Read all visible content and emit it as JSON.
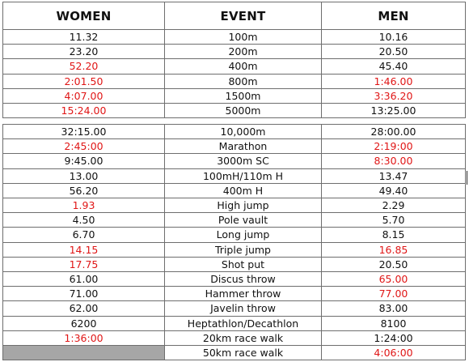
{
  "colors": {
    "highlight": "#e01616",
    "border": "#6e6e6e",
    "empty_cell": "#a6a6a6"
  },
  "header": {
    "women": "WOMEN",
    "event": "EVENT",
    "men": "MEN"
  },
  "table1": [
    {
      "women": "11.32",
      "event": "100m",
      "men": "10.16",
      "women_red": false,
      "men_red": false
    },
    {
      "women": "23.20",
      "event": "200m",
      "men": "20.50",
      "women_red": false,
      "men_red": false
    },
    {
      "women": "52.20",
      "event": "400m",
      "men": "45.40",
      "women_red": true,
      "men_red": false
    },
    {
      "women": "2:01.50",
      "event": "800m",
      "men": "1:46.00",
      "women_red": true,
      "men_red": true
    },
    {
      "women": "4:07.00",
      "event": "1500m",
      "men": "3:36.20",
      "women_red": true,
      "men_red": true
    },
    {
      "women": "15:24.00",
      "event": "5000m",
      "men": "13:25.00",
      "women_red": true,
      "men_red": false
    }
  ],
  "table2": [
    {
      "women": "32:15.00",
      "event": "10,000m",
      "men": "28:00.00",
      "women_red": false,
      "men_red": false
    },
    {
      "women": "2:45:00",
      "event": "Marathon",
      "men": "2:19:00",
      "women_red": true,
      "men_red": true
    },
    {
      "women": "9:45.00",
      "event": "3000m SC",
      "men": "8:30.00",
      "women_red": false,
      "men_red": true
    },
    {
      "women": "13.00",
      "event": "100mH/110m H",
      "men": "13.47",
      "women_red": false,
      "men_red": false
    },
    {
      "women": "56.20",
      "event": "400m H",
      "men": "49.40",
      "women_red": false,
      "men_red": false
    },
    {
      "women": "1.93",
      "event": "High jump",
      "men": "2.29",
      "women_red": true,
      "men_red": false
    },
    {
      "women": "4.50",
      "event": "Pole vault",
      "men": "5.70",
      "women_red": false,
      "men_red": false
    },
    {
      "women": "6.70",
      "event": "Long jump",
      "men": "8.15",
      "women_red": false,
      "men_red": false
    },
    {
      "women": "14.15",
      "event": "Triple jump",
      "men": "16.85",
      "women_red": true,
      "men_red": true
    },
    {
      "women": "17.75",
      "event": "Shot put",
      "men": "20.50",
      "women_red": true,
      "men_red": false
    },
    {
      "women": "61.00",
      "event": "Discus throw",
      "men": "65.00",
      "women_red": false,
      "men_red": true
    },
    {
      "women": "71.00",
      "event": "Hammer throw",
      "men": "77.00",
      "women_red": false,
      "men_red": true
    },
    {
      "women": "62.00",
      "event": "Javelin throw",
      "men": "83.00",
      "women_red": false,
      "men_red": false
    },
    {
      "women": "6200",
      "event": "Heptathlon/Decathlon",
      "men": "8100",
      "women_red": false,
      "men_red": false
    },
    {
      "women": "1:36:00",
      "event": "20km race walk",
      "men": "1:24:00",
      "women_red": true,
      "men_red": false
    },
    {
      "women": "",
      "event": "50km race walk",
      "men": "4:06:00",
      "women_red": false,
      "men_red": true,
      "women_empty": true
    }
  ]
}
